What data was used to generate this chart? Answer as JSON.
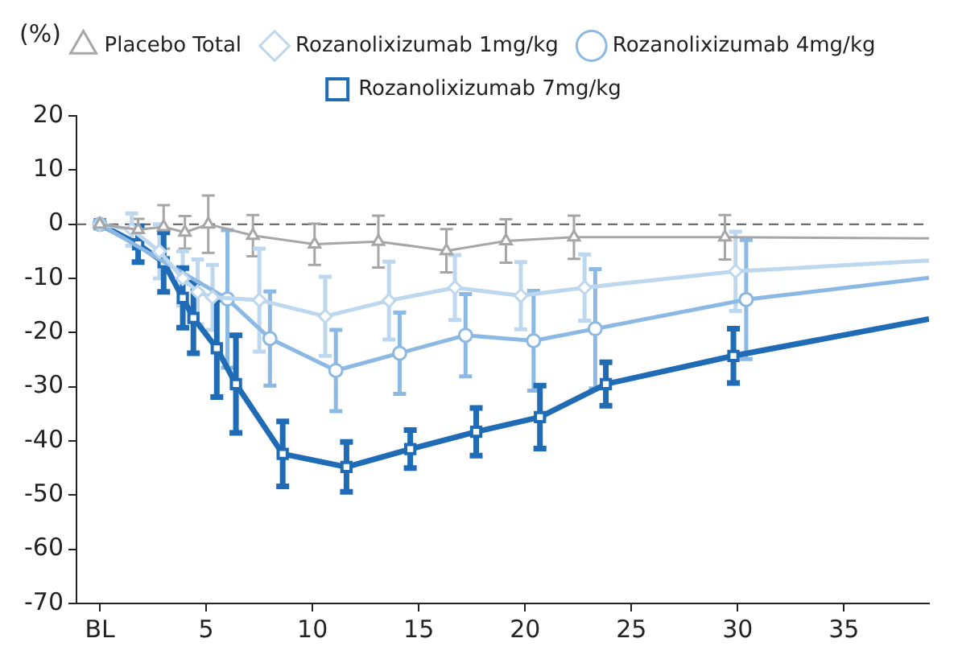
{
  "chart_data": {
    "type": "line",
    "ylabel": "(%)",
    "xlim": [
      -1.1,
      39
    ],
    "xticks": [
      {
        "value": 0,
        "label": "BL"
      },
      5,
      10,
      15,
      20,
      25,
      30,
      35
    ],
    "ylim": [
      -70,
      20
    ],
    "yticks": [
      -70,
      -60,
      -50,
      -40,
      -30,
      -20,
      -10,
      0,
      10,
      20
    ],
    "grid": false,
    "legend": "top",
    "ref_lines": [
      {
        "axis": "y",
        "value": 0,
        "color": "#595959",
        "line_style": "dashed"
      }
    ],
    "series": [
      {
        "name": "Placebo Total",
        "color": "#a6a6a6",
        "marker": "triangle",
        "x": [
          0,
          1.8,
          3,
          4,
          5.1,
          7.2,
          10.1,
          13.1,
          16.3,
          19.1,
          22.3,
          29.4,
          39
        ],
        "values": [
          0,
          -1,
          -0.5,
          -1.5,
          0,
          -2.1,
          -3.7,
          -3.2,
          -4.9,
          -3.1,
          -2.4,
          -2.4,
          -2.6
        ],
        "errors": [
          null,
          2,
          4,
          3,
          5.3,
          3.8,
          3.8,
          4.8,
          4,
          4,
          4,
          4.1,
          null
        ]
      },
      {
        "name": "Rozanolixizumab 1mg/kg",
        "color": "#bdd7ee",
        "marker": "diamond",
        "x": [
          0,
          1.5,
          2.8,
          3.9,
          4.6,
          5.3,
          7.5,
          10.6,
          13.6,
          16.7,
          19.8,
          22.8,
          29.9,
          39
        ],
        "values": [
          0,
          -1,
          -5,
          -10,
          -12.5,
          -13.5,
          -14,
          -17,
          -14.1,
          -11.7,
          -13.2,
          -11.7,
          -8.7,
          -6.7
        ],
        "errors": [
          null,
          3,
          5,
          5,
          6,
          6,
          9.5,
          7.3,
          7.2,
          6,
          6.2,
          6.1,
          7.3,
          null
        ]
      },
      {
        "name": "Rozanolixizumab 4mg/kg",
        "color": "#8cb9e3",
        "marker": "circle",
        "x": [
          0,
          1.8,
          3,
          3.9,
          4.4,
          5.5,
          6,
          8,
          11.1,
          14.1,
          17.2,
          20.4,
          23.3,
          30.4,
          39
        ],
        "values": [
          0,
          null,
          null,
          null,
          null,
          null,
          -13.8,
          -21.1,
          -27,
          -23.8,
          -20.5,
          -21.5,
          -19.3,
          -13.9,
          -9.9
        ],
        "errors": [
          null,
          null,
          null,
          null,
          null,
          null,
          12.7,
          8.7,
          7.5,
          7.5,
          7.6,
          9.2,
          11,
          11,
          null
        ]
      },
      {
        "name": "Rozanolixizumab 7mg/kg",
        "color": "#1f6bb5",
        "marker": "square",
        "x": [
          0,
          1.8,
          3,
          3.9,
          4.4,
          5.5,
          6.4,
          8.6,
          11.6,
          14.6,
          17.7,
          20.7,
          23.8,
          29.8,
          39
        ],
        "values": [
          0,
          -3.7,
          -7,
          -13.6,
          -17.3,
          -22.9,
          -29.5,
          -42.4,
          -44.8,
          -41.5,
          -38.3,
          -35.6,
          -29.5,
          -24.3,
          -17.5
        ],
        "errors": [
          null,
          3.3,
          5.5,
          5.5,
          6.5,
          9,
          9,
          6,
          4.6,
          3.5,
          4.4,
          5.8,
          4,
          5,
          null
        ]
      }
    ]
  }
}
